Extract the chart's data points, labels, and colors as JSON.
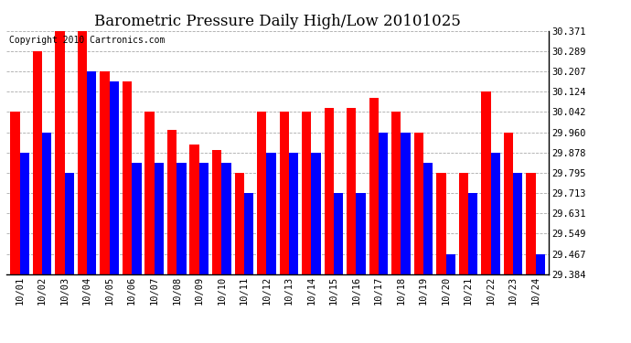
{
  "title": "Barometric Pressure Daily High/Low 20101025",
  "copyright": "Copyright 2010 Cartronics.com",
  "dates": [
    "10/01",
    "10/02",
    "10/03",
    "10/04",
    "10/05",
    "10/06",
    "10/07",
    "10/08",
    "10/09",
    "10/10",
    "10/11",
    "10/12",
    "10/13",
    "10/14",
    "10/15",
    "10/16",
    "10/17",
    "10/18",
    "10/19",
    "10/20",
    "10/21",
    "10/22",
    "10/23",
    "10/24"
  ],
  "highs": [
    30.042,
    30.289,
    30.371,
    30.371,
    30.207,
    30.165,
    30.042,
    29.97,
    29.912,
    29.89,
    29.795,
    30.042,
    30.042,
    30.042,
    30.06,
    30.06,
    30.1,
    30.042,
    29.96,
    29.795,
    29.795,
    30.124,
    29.96,
    29.795
  ],
  "lows": [
    29.878,
    29.96,
    29.795,
    30.207,
    30.165,
    29.836,
    29.836,
    29.836,
    29.836,
    29.836,
    29.713,
    29.878,
    29.878,
    29.878,
    29.713,
    29.713,
    29.96,
    29.96,
    29.836,
    29.467,
    29.713,
    29.878,
    29.795,
    29.467
  ],
  "ylim": [
    29.384,
    30.371
  ],
  "yticks": [
    29.384,
    29.467,
    29.549,
    29.631,
    29.713,
    29.795,
    29.878,
    29.96,
    30.042,
    30.124,
    30.207,
    30.289,
    30.371
  ],
  "bar_width": 0.42,
  "high_color": "#FF0000",
  "low_color": "#0000FF",
  "bg_color": "#FFFFFF",
  "grid_color": "#AAAAAA",
  "title_fontsize": 12,
  "tick_fontsize": 7.5,
  "copyright_fontsize": 7
}
